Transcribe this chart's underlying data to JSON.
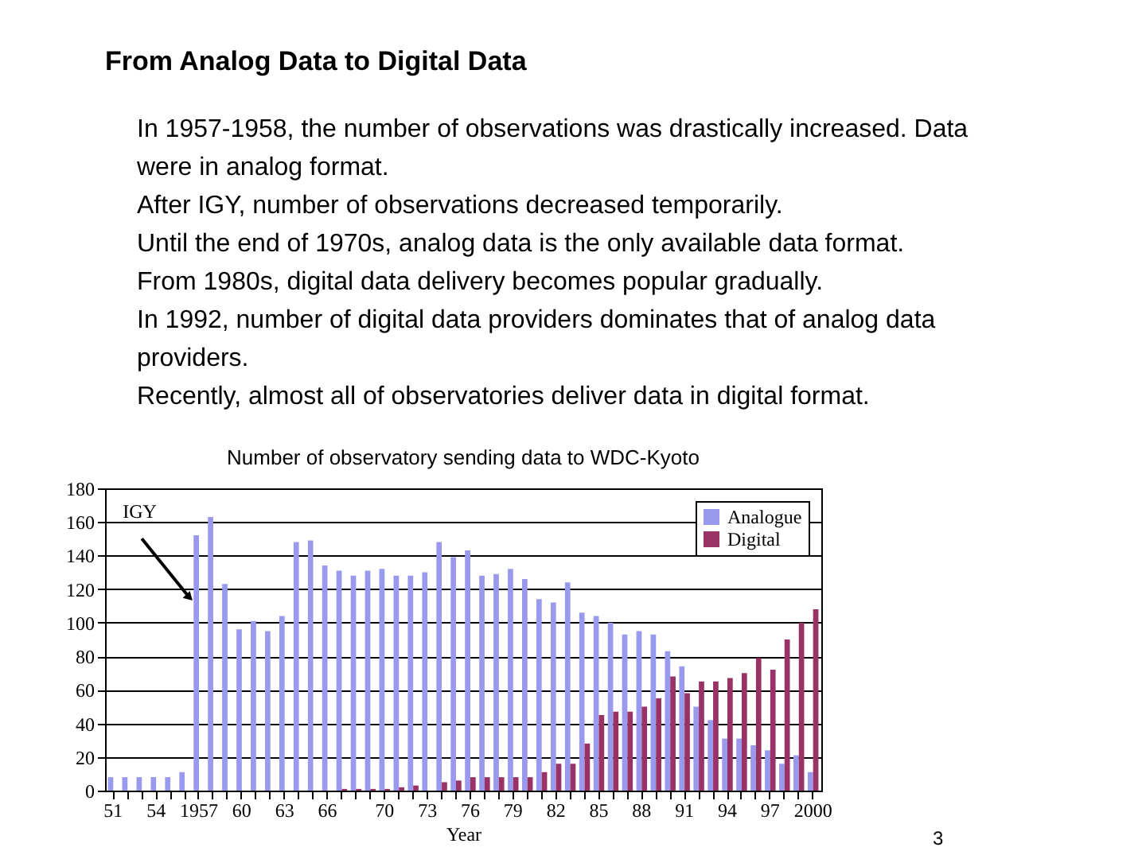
{
  "chart_data": {
    "type": "bar",
    "title": "From Analog Data to Digital Data",
    "subtitle": "Number of observatory sending data to WDC-Kyoto",
    "xlabel": "Year",
    "categories": [
      "51",
      null,
      null,
      "54",
      null,
      null,
      "1957",
      null,
      null,
      "60",
      null,
      null,
      "63",
      null,
      null,
      "66",
      null,
      null,
      null,
      "70",
      null,
      null,
      "73",
      null,
      null,
      "76",
      null,
      null,
      "79",
      null,
      null,
      "82",
      null,
      null,
      "85",
      null,
      null,
      "88",
      null,
      null,
      "91",
      null,
      null,
      "94",
      null,
      null,
      "97",
      null,
      null,
      "2000"
    ],
    "series": [
      {
        "name": "Analogue",
        "color": "#9999ee",
        "values": [
          8,
          8,
          8,
          8,
          8,
          11,
          152,
          163,
          123,
          96,
          101,
          95,
          104,
          148,
          149,
          134,
          131,
          128,
          131,
          132,
          128,
          128,
          130,
          148,
          139,
          143,
          128,
          129,
          132,
          126,
          114,
          112,
          124,
          106,
          104,
          100,
          93,
          95,
          93,
          83,
          74,
          50,
          42,
          31,
          31,
          27,
          24,
          16,
          21,
          11
        ]
      },
      {
        "name": "Digital",
        "color": "#993366",
        "values": [
          0,
          0,
          0,
          0,
          0,
          0,
          0,
          0,
          0,
          0,
          0,
          0,
          0,
          0,
          0,
          0,
          1,
          1,
          1,
          1,
          2,
          3,
          0,
          5,
          6,
          8,
          8,
          8,
          8,
          8,
          11,
          16,
          16,
          28,
          45,
          47,
          47,
          50,
          55,
          68,
          58,
          65,
          65,
          67,
          70,
          79,
          72,
          90,
          100,
          108
        ]
      }
    ],
    "ylim": [
      0,
      180
    ],
    "yticks": [
      0,
      20,
      40,
      60,
      80,
      100,
      120,
      140,
      160,
      180
    ],
    "grid": "y",
    "legend": "top right",
    "annotations": [
      "In 1957-1958, the number of observations was drastically increased. Data were in analog format.",
      "After IGY, number of observations decreased temporarily.",
      "Until the end of 1970s, analog data is the only available data format.",
      "From 1980s, digital data delivery becomes popular gradually.",
      "In 1992, number of digital data providers dominates that of analog data providers.",
      "Recently, almost all of observatories deliver data in digital format.",
      {
        "text": "IGY",
        "x": "1957",
        "y": 115
      },
      "3"
    ]
  }
}
